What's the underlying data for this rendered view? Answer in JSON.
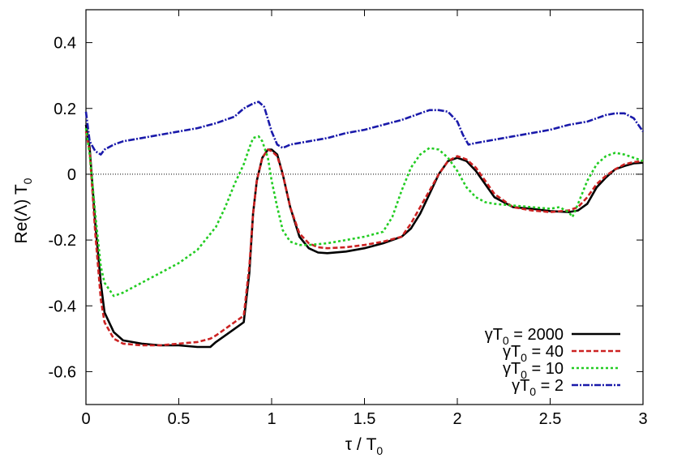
{
  "chart_data": {
    "type": "line",
    "xlabel": {
      "main": "τ / T",
      "sub": "0"
    },
    "ylabel": {
      "main": "Re(Λ) T",
      "sub": "0"
    },
    "xlim": [
      0,
      3
    ],
    "ylim": [
      -0.7,
      0.5
    ],
    "xticks": [
      0,
      0.5,
      1,
      1.5,
      2,
      2.5,
      3
    ],
    "xtick_labels": [
      "0",
      "0.5",
      "1",
      "1.5",
      "2",
      "2.5",
      "3"
    ],
    "yticks": [
      -0.6,
      -0.4,
      -0.2,
      0,
      0.2,
      0.4
    ],
    "ytick_labels": [
      "-0.6",
      "-0.4",
      "-0.2",
      "0",
      "0.2",
      "0.4"
    ],
    "zero_line": true,
    "grid": false,
    "legend_position": "bottom-right",
    "series": [
      {
        "name": "γT0 = 2000",
        "legend": {
          "pre": "γT",
          "sub": "0",
          "post": " = 2000"
        },
        "color": "#000000",
        "dash": "",
        "x": [
          0.0,
          0.02,
          0.05,
          0.08,
          0.1,
          0.15,
          0.2,
          0.3,
          0.4,
          0.5,
          0.6,
          0.67,
          0.7,
          0.75,
          0.8,
          0.85,
          0.88,
          0.9,
          0.92,
          0.95,
          0.98,
          1.0,
          1.03,
          1.06,
          1.1,
          1.15,
          1.2,
          1.25,
          1.3,
          1.4,
          1.5,
          1.6,
          1.7,
          1.75,
          1.8,
          1.85,
          1.9,
          1.95,
          2.0,
          2.05,
          2.1,
          2.15,
          2.2,
          2.3,
          2.4,
          2.5,
          2.6,
          2.65,
          2.7,
          2.75,
          2.8,
          2.85,
          2.9,
          2.95,
          3.0
        ],
        "y": [
          0.15,
          0.08,
          -0.15,
          -0.33,
          -0.42,
          -0.48,
          -0.505,
          -0.515,
          -0.52,
          -0.52,
          -0.525,
          -0.525,
          -0.51,
          -0.49,
          -0.47,
          -0.45,
          -0.3,
          -0.12,
          -0.02,
          0.05,
          0.075,
          0.075,
          0.06,
          0.0,
          -0.1,
          -0.19,
          -0.225,
          -0.238,
          -0.24,
          -0.235,
          -0.225,
          -0.21,
          -0.19,
          -0.165,
          -0.12,
          -0.06,
          0.0,
          0.04,
          0.05,
          0.04,
          0.01,
          -0.03,
          -0.07,
          -0.1,
          -0.105,
          -0.112,
          -0.115,
          -0.11,
          -0.09,
          -0.04,
          -0.01,
          0.015,
          0.025,
          0.033,
          0.035
        ]
      },
      {
        "name": "γT0 = 40",
        "legend": {
          "pre": "γT",
          "sub": "0",
          "post": " = 40"
        },
        "color": "#cc2222",
        "dash": "6,3",
        "x": [
          0.0,
          0.02,
          0.05,
          0.08,
          0.1,
          0.15,
          0.2,
          0.3,
          0.4,
          0.5,
          0.6,
          0.67,
          0.7,
          0.75,
          0.8,
          0.85,
          0.88,
          0.9,
          0.92,
          0.95,
          0.98,
          1.0,
          1.03,
          1.06,
          1.1,
          1.15,
          1.2,
          1.25,
          1.3,
          1.4,
          1.5,
          1.6,
          1.7,
          1.75,
          1.8,
          1.85,
          1.9,
          1.95,
          2.0,
          2.05,
          2.1,
          2.15,
          2.2,
          2.3,
          2.4,
          2.5,
          2.6,
          2.65,
          2.7,
          2.75,
          2.8,
          2.85,
          2.9,
          2.95,
          3.0
        ],
        "y": [
          0.13,
          0.07,
          -0.18,
          -0.38,
          -0.45,
          -0.5,
          -0.515,
          -0.52,
          -0.52,
          -0.515,
          -0.51,
          -0.5,
          -0.49,
          -0.47,
          -0.45,
          -0.43,
          -0.28,
          -0.12,
          -0.02,
          0.05,
          0.075,
          0.07,
          0.055,
          0.0,
          -0.1,
          -0.18,
          -0.21,
          -0.222,
          -0.225,
          -0.222,
          -0.215,
          -0.205,
          -0.19,
          -0.15,
          -0.1,
          -0.05,
          0.0,
          0.04,
          0.055,
          0.045,
          0.02,
          -0.02,
          -0.06,
          -0.1,
          -0.11,
          -0.115,
          -0.11,
          -0.1,
          -0.07,
          -0.03,
          -0.005,
          0.015,
          0.03,
          0.037,
          0.04
        ]
      },
      {
        "name": "γT0 = 10",
        "legend": {
          "pre": "γT",
          "sub": "0",
          "post": " = 10"
        },
        "color": "#22cc22",
        "dash": "3,3",
        "x": [
          0.0,
          0.02,
          0.05,
          0.08,
          0.1,
          0.15,
          0.2,
          0.3,
          0.4,
          0.5,
          0.6,
          0.7,
          0.75,
          0.8,
          0.85,
          0.88,
          0.9,
          0.93,
          0.95,
          0.98,
          1.0,
          1.03,
          1.06,
          1.1,
          1.15,
          1.2,
          1.3,
          1.4,
          1.5,
          1.6,
          1.65,
          1.7,
          1.75,
          1.8,
          1.85,
          1.9,
          1.95,
          2.0,
          2.05,
          2.1,
          2.15,
          2.2,
          2.3,
          2.4,
          2.5,
          2.55,
          2.6,
          2.62,
          2.65,
          2.7,
          2.75,
          2.8,
          2.85,
          2.9,
          2.95,
          3.0
        ],
        "y": [
          0.14,
          0.06,
          -0.12,
          -0.28,
          -0.33,
          -0.37,
          -0.36,
          -0.33,
          -0.3,
          -0.27,
          -0.23,
          -0.16,
          -0.1,
          -0.03,
          0.03,
          0.08,
          0.11,
          0.115,
          0.1,
          0.05,
          -0.02,
          -0.1,
          -0.17,
          -0.205,
          -0.215,
          -0.215,
          -0.21,
          -0.2,
          -0.19,
          -0.175,
          -0.13,
          -0.05,
          0.02,
          0.06,
          0.08,
          0.075,
          0.05,
          0.01,
          -0.04,
          -0.07,
          -0.085,
          -0.09,
          -0.095,
          -0.1,
          -0.105,
          -0.1,
          -0.115,
          -0.13,
          -0.09,
          -0.02,
          0.03,
          0.055,
          0.065,
          0.06,
          0.05,
          0.04
        ]
      },
      {
        "name": "γT0 = 2",
        "legend": {
          "pre": "γT",
          "sub": "0",
          "post": " = 2"
        },
        "color": "#1a1aaa",
        "dash": "8,2,2,2",
        "x": [
          0.0,
          0.02,
          0.05,
          0.08,
          0.1,
          0.15,
          0.2,
          0.3,
          0.4,
          0.5,
          0.6,
          0.7,
          0.8,
          0.85,
          0.9,
          0.93,
          0.96,
          1.0,
          1.03,
          1.06,
          1.1,
          1.2,
          1.3,
          1.4,
          1.5,
          1.6,
          1.7,
          1.8,
          1.85,
          1.9,
          1.95,
          2.0,
          2.03,
          2.06,
          2.1,
          2.2,
          2.3,
          2.4,
          2.5,
          2.6,
          2.7,
          2.8,
          2.85,
          2.9,
          2.95,
          3.0
        ],
        "y": [
          0.19,
          0.1,
          0.07,
          0.06,
          0.075,
          0.09,
          0.1,
          0.11,
          0.12,
          0.13,
          0.14,
          0.155,
          0.175,
          0.2,
          0.215,
          0.22,
          0.205,
          0.13,
          0.09,
          0.08,
          0.09,
          0.1,
          0.11,
          0.125,
          0.135,
          0.15,
          0.165,
          0.185,
          0.195,
          0.195,
          0.19,
          0.16,
          0.12,
          0.09,
          0.095,
          0.105,
          0.115,
          0.125,
          0.135,
          0.15,
          0.16,
          0.18,
          0.185,
          0.185,
          0.17,
          0.13
        ]
      }
    ]
  }
}
